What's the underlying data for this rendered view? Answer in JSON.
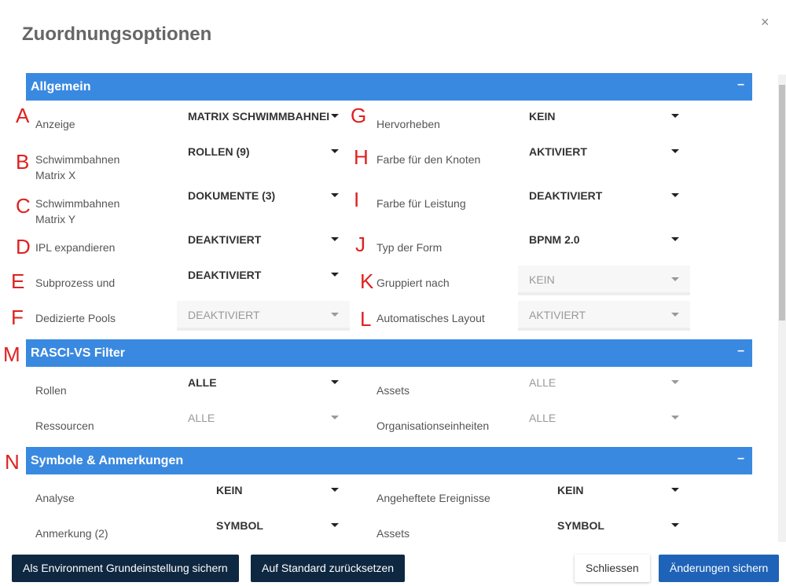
{
  "dialog": {
    "title": "Zuordnungsoptionen",
    "close": "×"
  },
  "sections": [
    {
      "title": "Allgemein",
      "collapse": "–"
    },
    {
      "title": "RASCI-VS Filter",
      "collapse": "–"
    },
    {
      "title": "Symbole & Anmerkungen",
      "collapse": "–"
    }
  ],
  "annotations": [
    "A",
    "B",
    "C",
    "D",
    "E",
    "F",
    "G",
    "H",
    "I",
    "J",
    "K",
    "L",
    "M",
    "N"
  ],
  "allgemein": {
    "left": [
      {
        "label": "Anzeige",
        "value": "MATRIX SCHWIMMBAHNEI",
        "disabled": false
      },
      {
        "label": "Schwimmbahnen",
        "label2": "Matrix X",
        "value": "ROLLEN (9)",
        "disabled": false
      },
      {
        "label": "Schwimmbahnen",
        "label2": "Matrix Y",
        "value": "DOKUMENTE (3)",
        "disabled": false
      },
      {
        "label": "IPL expandieren",
        "value": "DEAKTIVIERT",
        "disabled": false
      },
      {
        "label": "Subprozess und",
        "value": "DEAKTIVIERT",
        "disabled": false
      },
      {
        "label": "Dedizierte Pools",
        "value": "DEAKTIVIERT",
        "disabled": true
      }
    ],
    "right": [
      {
        "label": "Hervorheben",
        "value": "KEIN",
        "disabled": false
      },
      {
        "label": "Farbe für den Knoten",
        "value": "AKTIVIERT",
        "disabled": false
      },
      {
        "label": "Farbe für Leistung",
        "value": "DEAKTIVIERT",
        "disabled": false
      },
      {
        "label": "Typ der Form",
        "value": "BPNM 2.0",
        "disabled": false
      },
      {
        "label": "Gruppiert nach",
        "value": "KEIN",
        "disabled": true
      },
      {
        "label": "Automatisches Layout",
        "value": "AKTIVIERT",
        "disabled": true
      }
    ]
  },
  "rasci": {
    "left": [
      {
        "label": "Rollen",
        "value": "ALLE",
        "disabled": false
      },
      {
        "label": "Ressourcen",
        "value": "ALLE",
        "disabled": true
      }
    ],
    "right": [
      {
        "label": "Assets",
        "value": "ALLE",
        "disabled": true
      },
      {
        "label": "Organisationseinheiten",
        "value": "ALLE",
        "disabled": true
      }
    ]
  },
  "symbole": {
    "left": [
      {
        "label": "Analyse",
        "value": "KEIN"
      },
      {
        "label": "Anmerkung (2)",
        "value": "SYMBOL"
      }
    ],
    "right": [
      {
        "label": "Angeheftete Ereignisse",
        "value": "KEIN"
      },
      {
        "label": "Assets",
        "value": "SYMBOL"
      }
    ]
  },
  "footer": {
    "save_env": "Als Environment Grundeinstellung sichern",
    "reset": "Auf Standard zurücksetzen",
    "close": "Schliessen",
    "save": "Änderungen sichern"
  },
  "colors": {
    "header": "#3a89e0",
    "annotation": "#e02020",
    "primary": "#1f63b8",
    "dark": "#0f2841"
  }
}
